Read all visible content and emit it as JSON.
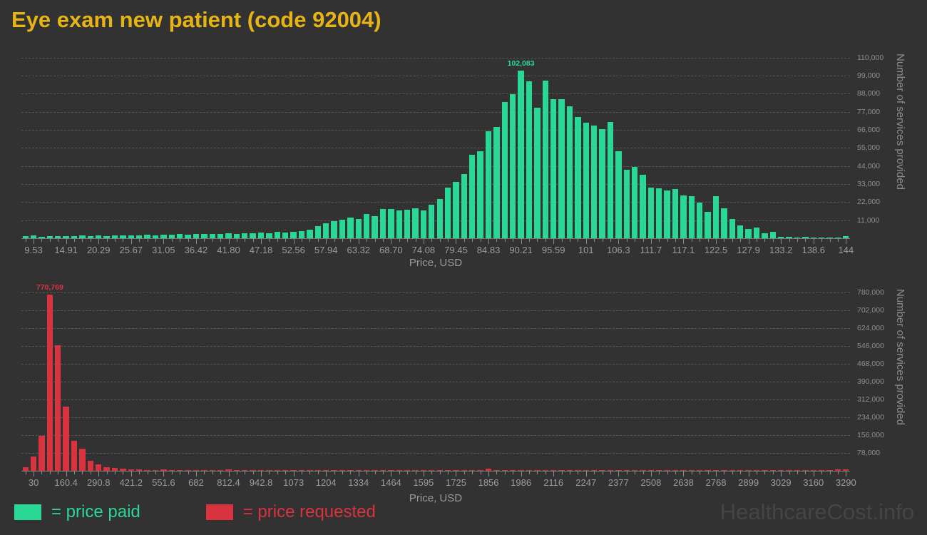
{
  "title": "Eye exam new patient (code 92004)",
  "watermark": "HealthcareCost.info",
  "colors": {
    "background": "#323232",
    "title": "#e7b416",
    "price_paid": "#29d895",
    "price_requested": "#d9333f",
    "axis_text": "#9c9c9c",
    "gridline": "#575757"
  },
  "legend": [
    {
      "label": "= price paid",
      "color": "#29d895"
    },
    {
      "label": "= price requested",
      "color": "#d9333f"
    }
  ],
  "chart_data": [
    {
      "type": "bar",
      "name": "price-paid-histogram",
      "series_name": "price paid",
      "xlabel": "Price, USD",
      "ylabel": "Number of services provided",
      "bar_color": "#29d895",
      "peak_label": "102,083",
      "peak_index": 61,
      "ymax": 112500,
      "y_tick_step": 11000,
      "y_tick_labels": [
        "11,000",
        "22,000",
        "33,000",
        "44,000",
        "55,000",
        "66,000",
        "77,000",
        "88,000",
        "99,000",
        "110,000"
      ],
      "x_tick_every": 4,
      "x_tick_offset": 1,
      "x_tick_labels": [
        "9.53",
        "14.91",
        "20.29",
        "25.67",
        "31.05",
        "36.42",
        "41.80",
        "47.18",
        "52.56",
        "57.94",
        "63.32",
        "68.70",
        "74.08",
        "79.45",
        "84.83",
        "90.21",
        "95.59",
        "101",
        "106.3",
        "111.7",
        "117.1",
        "122.5",
        "127.9",
        "133.2",
        "138.6",
        "144"
      ],
      "values": [
        1200,
        1700,
        900,
        1500,
        1300,
        1500,
        1300,
        1600,
        1400,
        1700,
        1500,
        1800,
        1600,
        1900,
        1700,
        2000,
        1800,
        2200,
        2000,
        2400,
        2200,
        2600,
        2400,
        2800,
        2600,
        3000,
        2800,
        3200,
        3000,
        3400,
        3200,
        3700,
        3500,
        4000,
        4400,
        5100,
        7400,
        9100,
        10400,
        11300,
        12600,
        11700,
        14800,
        13500,
        17800,
        17800,
        16900,
        17200,
        18200,
        16900,
        20400,
        23900,
        30800,
        34300,
        39000,
        50800,
        53000,
        65100,
        67800,
        82900,
        87700,
        102083,
        95400,
        79400,
        95800,
        84700,
        84900,
        80500,
        74000,
        70500,
        68800,
        66500,
        71000,
        53000,
        41800,
        43400,
        38600,
        30800,
        30300,
        29000,
        30000,
        26000,
        25600,
        21700,
        16100,
        25600,
        18300,
        11700,
        7800,
        5600,
        6400,
        3000,
        3900,
        1000,
        800,
        600,
        700,
        500,
        600,
        400,
        500,
        1200
      ]
    },
    {
      "type": "bar",
      "name": "price-requested-histogram",
      "series_name": "price requested",
      "xlabel": "Price, USD",
      "ylabel": "Number of services provided",
      "bar_color": "#d9333f",
      "peak_label": "770,769",
      "peak_index": 3,
      "ymax": 796000,
      "y_tick_step": 78000,
      "y_tick_labels": [
        "78,000",
        "156,000",
        "234,000",
        "312,000",
        "390,000",
        "468,000",
        "546,000",
        "624,000",
        "702,000",
        "780,000"
      ],
      "x_tick_every": 4,
      "x_tick_offset": 1,
      "x_tick_labels": [
        "30",
        "160.4",
        "290.8",
        "421.2",
        "551.6",
        "682",
        "812.4",
        "942.8",
        "1073",
        "1204",
        "1334",
        "1464",
        "1595",
        "1725",
        "1856",
        "1986",
        "2116",
        "2247",
        "2377",
        "2508",
        "2638",
        "2768",
        "2899",
        "3029",
        "3160",
        "3290"
      ],
      "values": [
        15600,
        64000,
        153000,
        770769,
        549000,
        281000,
        131000,
        97000,
        44000,
        28000,
        15600,
        12500,
        8000,
        6000,
        5000,
        4500,
        4000,
        5500,
        3500,
        3000,
        3500,
        4000,
        3000,
        2500,
        3000,
        5000,
        2500,
        2000,
        2500,
        2000,
        1800,
        1500,
        1800,
        1500,
        1200,
        1500,
        1200,
        1000,
        1200,
        1000,
        1200,
        1000,
        800,
        1000,
        800,
        1000,
        800,
        600,
        800,
        600,
        800,
        600,
        800,
        600,
        500,
        600,
        3500,
        8000,
        4000,
        500,
        400,
        500,
        400,
        500,
        400,
        300,
        400,
        300,
        400,
        300,
        400,
        300,
        200,
        300,
        200,
        300,
        200,
        300,
        200,
        300,
        200,
        300,
        200,
        300,
        200,
        300,
        200,
        300,
        200,
        300,
        200,
        300,
        200,
        200,
        300,
        300,
        200,
        300,
        200,
        300,
        6000,
        7000
      ]
    }
  ]
}
